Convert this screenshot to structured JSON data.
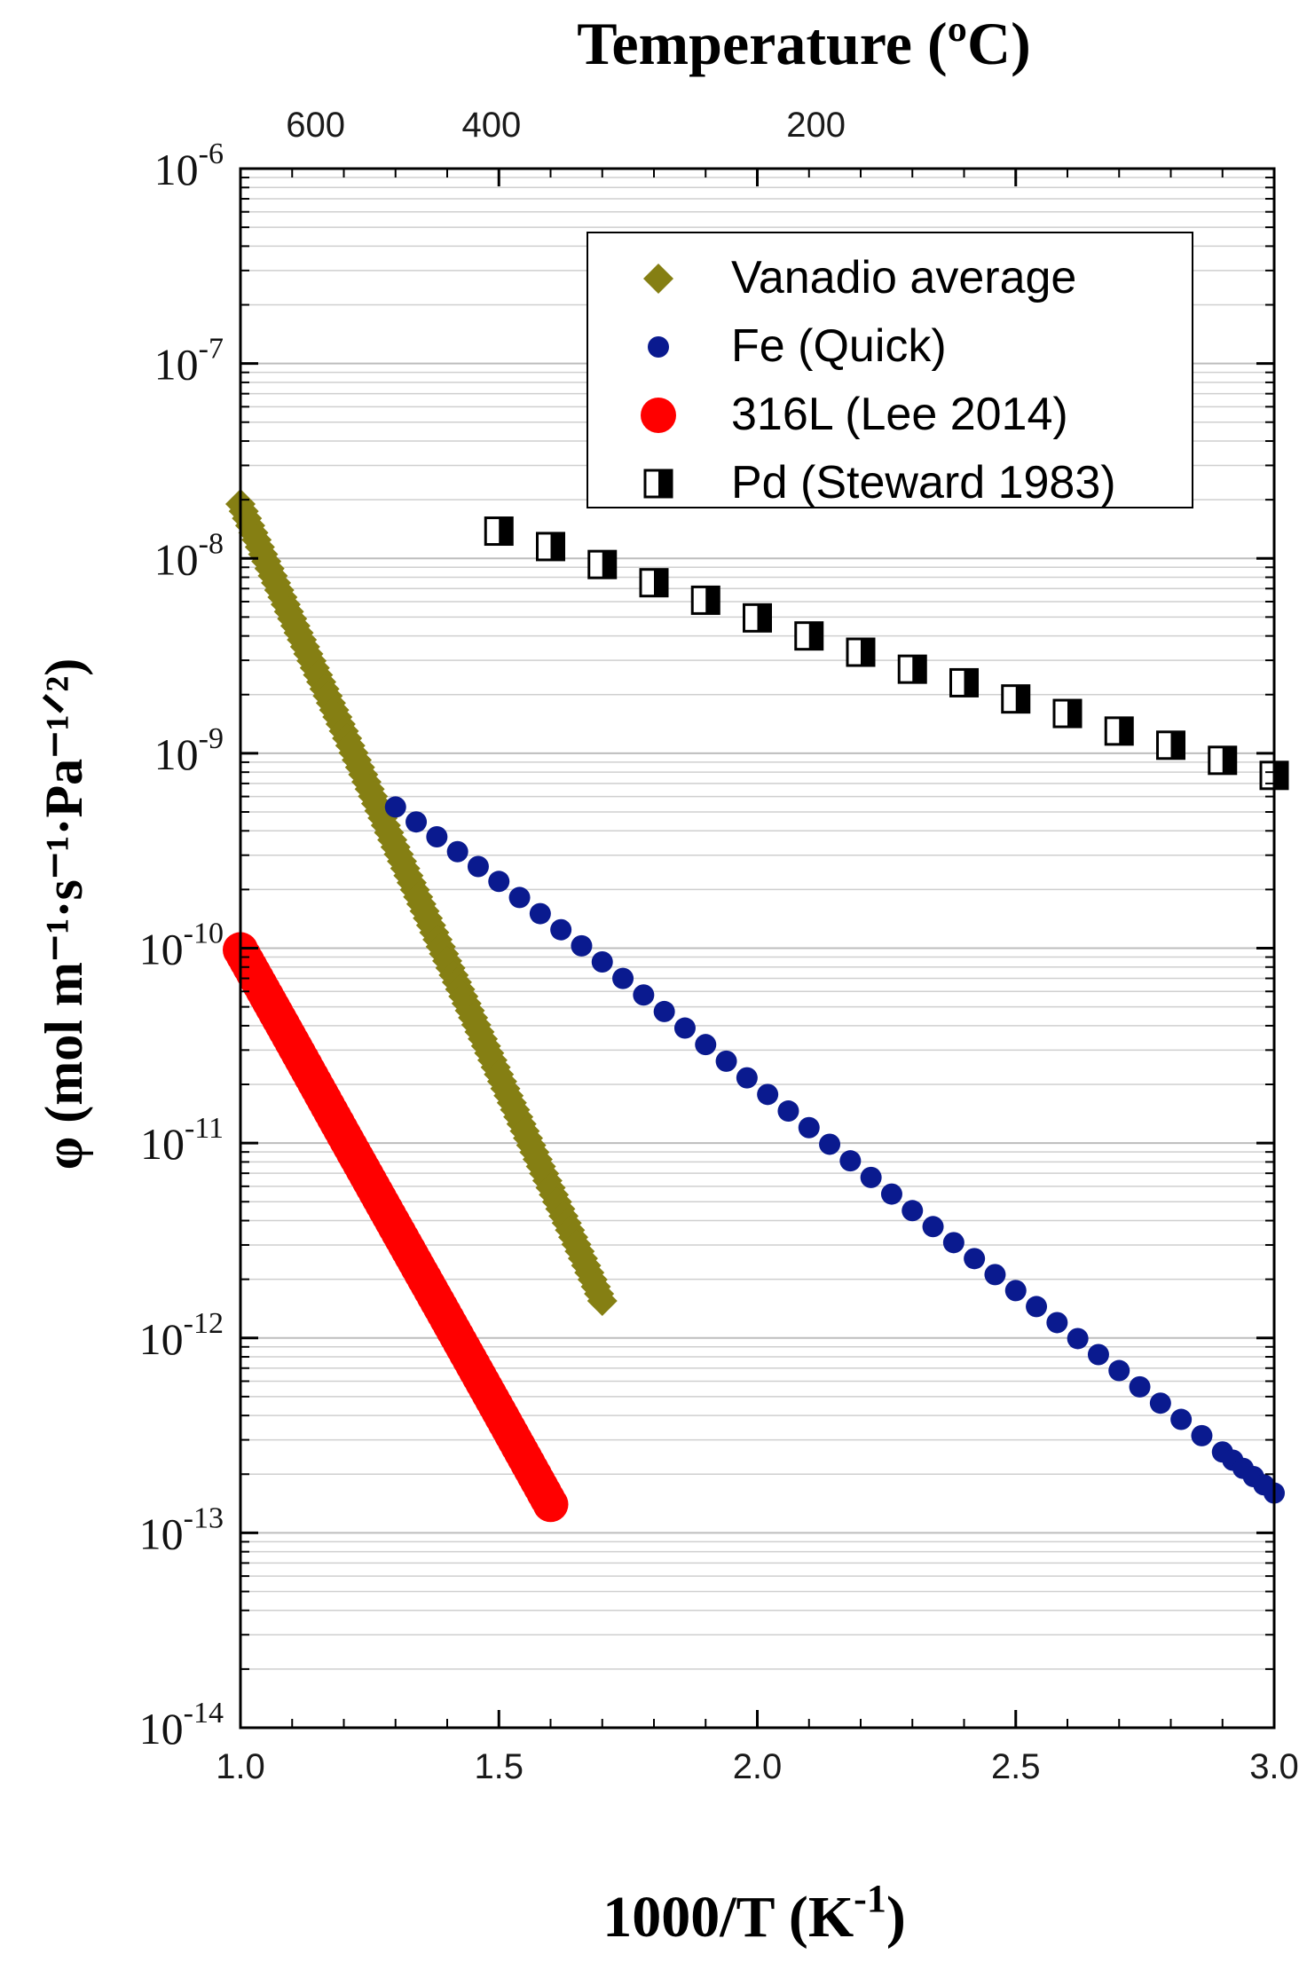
{
  "chart_data": {
    "type": "scatter",
    "xlabel_base": "1000/T (K",
    "xlabel_exp": "-1",
    "xlabel_close": ")",
    "top_axis_title": "Temperature (ºC)",
    "ylabel": "φ (mol m⁻¹·s⁻¹·Pa⁻¹ᐟ²)",
    "xlim": [
      1.0,
      3.0
    ],
    "ylim_log10": [
      -14,
      -6
    ],
    "y_scale": "log",
    "grid": "horizontal minor lines",
    "legend_position": "top-right",
    "x_ticks": [
      "1.0",
      "1.5",
      "2.0",
      "2.5",
      "3.0"
    ],
    "y_tick_exponents": [
      "-14",
      "-13",
      "-12",
      "-11",
      "-10",
      "-9",
      "-8",
      "-7",
      "-6"
    ],
    "y_tick_base": "10",
    "top_ticks": [
      {
        "label": "600",
        "celsius": 600
      },
      {
        "label": "400",
        "celsius": 400
      },
      {
        "label": "200",
        "celsius": 200
      }
    ],
    "series": [
      {
        "name": "Vanadio average",
        "marker": "diamond",
        "color": "#857f13",
        "x": [
          1.0,
          1.1,
          1.2,
          1.3,
          1.4,
          1.5,
          1.6,
          1.7
        ],
        "y": [
          1.9e-08,
          4.9e-09,
          1.3e-09,
          3.3e-10,
          8.6e-11,
          2.25e-11,
          5.9e-12,
          1.55e-12
        ]
      },
      {
        "name": "Fe (Quick)",
        "marker": "circle-small",
        "color": "#0a1a8f",
        "x": [
          1.3,
          1.5,
          1.7,
          1.9,
          2.1,
          2.3,
          2.5,
          2.7,
          2.9,
          3.0
        ],
        "y": [
          5.3e-10,
          2.2e-10,
          8.5e-11,
          3.2e-11,
          1.2e-11,
          4.5e-12,
          1.75e-12,
          6.8e-13,
          2.6e-13,
          1.6e-13
        ]
      },
      {
        "name": "316L (Lee 2014)",
        "marker": "circle-large",
        "color": "#ff0000",
        "x": [
          1.0,
          1.1,
          1.2,
          1.3,
          1.4,
          1.5,
          1.6
        ],
        "y": [
          9.8e-11,
          3.3e-11,
          1.1e-11,
          3.7e-12,
          1.25e-12,
          4.2e-13,
          1.4e-13
        ]
      },
      {
        "name": "Pd (Steward 1983)",
        "marker": "half-filled-square",
        "color": "#000000",
        "x": [
          1.5,
          1.6,
          1.7,
          1.8,
          1.9,
          2.0,
          2.1,
          2.2,
          2.3,
          2.4,
          2.5,
          2.6,
          2.7,
          2.8,
          2.9,
          3.0
        ],
        "y": [
          1.38e-08,
          1.15e-08,
          9.3e-09,
          7.5e-09,
          6.1e-09,
          4.95e-09,
          4e-09,
          3.3e-09,
          2.7e-09,
          2.3e-09,
          1.9e-09,
          1.6e-09,
          1.3e-09,
          1.1e-09,
          9.2e-10,
          7.7e-10
        ]
      }
    ]
  }
}
